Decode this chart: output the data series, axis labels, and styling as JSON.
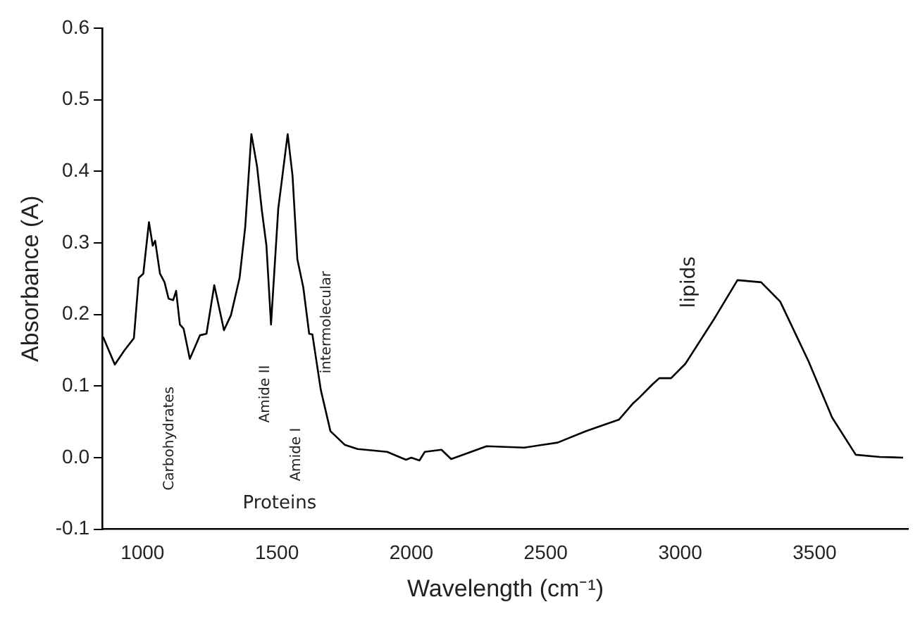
{
  "chart_data": {
    "type": "line",
    "xlabel": "Wavelength (cm⁻¹)",
    "ylabel": "Absorbance (A)",
    "x": [
      853,
      897,
      933,
      968,
      986,
      1003,
      1024,
      1038,
      1047,
      1065,
      1082,
      1097,
      1114,
      1125,
      1139,
      1153,
      1176,
      1214,
      1238,
      1267,
      1303,
      1329,
      1361,
      1382,
      1405,
      1426,
      1444,
      1461,
      1478,
      1505,
      1540,
      1558,
      1576,
      1598,
      1620,
      1632,
      1663,
      1699,
      1752,
      1800,
      1910,
      1980,
      2000,
      2030,
      2050,
      2112,
      2148,
      2280,
      2420,
      2544,
      2650,
      2772,
      2825,
      2843,
      2896,
      2922,
      2966,
      3019,
      3125,
      3213,
      3301,
      3372,
      3478,
      3565,
      3653,
      3742,
      3829
    ],
    "series": [
      {
        "color": "#000000",
        "values": [
          0.169,
          0.13,
          0.15,
          0.167,
          0.251,
          0.257,
          0.329,
          0.296,
          0.303,
          0.257,
          0.245,
          0.222,
          0.22,
          0.233,
          0.186,
          0.18,
          0.138,
          0.171,
          0.173,
          0.241,
          0.178,
          0.199,
          0.251,
          0.322,
          0.452,
          0.407,
          0.345,
          0.296,
          0.186,
          0.348,
          0.452,
          0.394,
          0.277,
          0.238,
          0.173,
          0.172,
          0.095,
          0.037,
          0.018,
          0.012,
          0.008,
          -0.003,
          0.0,
          -0.004,
          0.008,
          0.011,
          -0.002,
          0.016,
          0.014,
          0.021,
          0.037,
          0.053,
          0.076,
          0.082,
          0.102,
          0.111,
          0.111,
          0.131,
          0.193,
          0.248,
          0.245,
          0.218,
          0.134,
          0.056,
          0.004,
          0.001,
          0.0
        ]
      }
    ],
    "xlim": [
      850,
      3850
    ],
    "xticks": [
      1000,
      1500,
      2000,
      2500,
      3000,
      3500
    ],
    "ylim": [
      -0.1,
      0.6
    ],
    "yticks": [
      {
        "value": -0.1,
        "label": "-0.1"
      },
      {
        "value": 0,
        "label": "0.0"
      },
      0.1,
      0.2,
      0.3,
      0.4,
      0.5,
      0.6
    ],
    "grid": false,
    "legend": false,
    "marker": "none",
    "line_style": "solid",
    "annotations": [
      "Carbohydrates",
      "Amide II",
      "Amide I",
      "intermolecular",
      "Proteins",
      "lipids"
    ]
  }
}
